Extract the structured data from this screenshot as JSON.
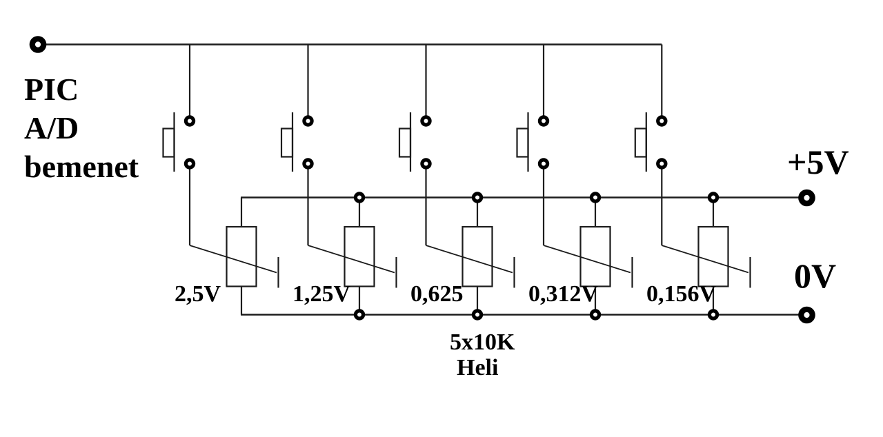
{
  "title": {
    "lines": "PIC\nA/D\nbemenet"
  },
  "rails": {
    "vcc_label": "+5V",
    "gnd_label": "0V"
  },
  "channels": [
    {
      "value": "2,5V"
    },
    {
      "value": "1,25V"
    },
    {
      "value": "0,625"
    },
    {
      "value": "0,312V"
    },
    {
      "value": "0,156V"
    }
  ],
  "caption": {
    "line1": "5x10K",
    "line2": "Heli"
  },
  "colors": {
    "ink": "#1c1c1c",
    "ring": "#000000",
    "background": "#ffffff"
  }
}
